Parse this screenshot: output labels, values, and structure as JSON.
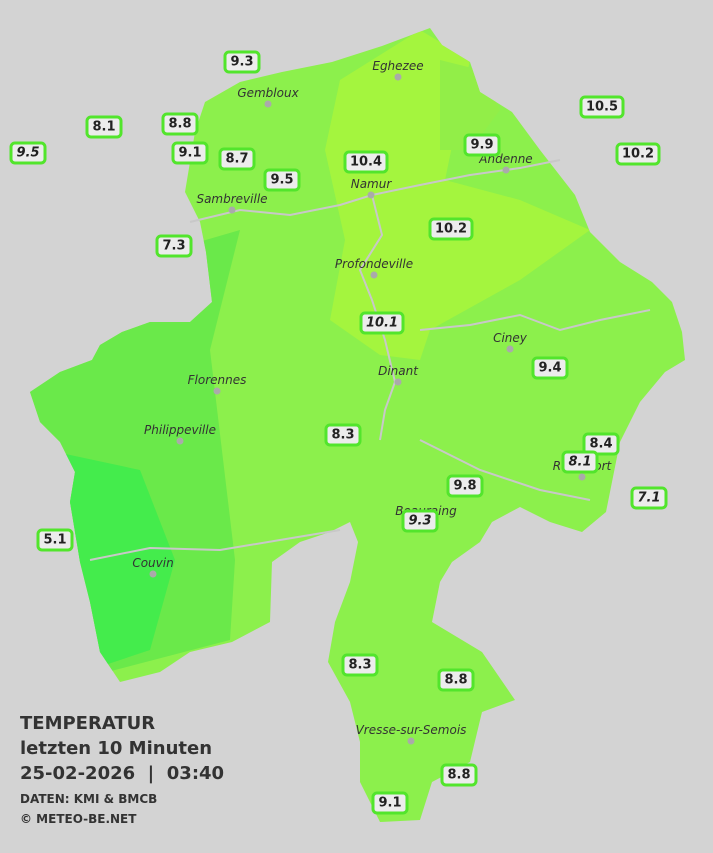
{
  "legend": {
    "title": "TEMPERATUR",
    "subtitle": "letzten 10 Minuten",
    "timestamp": "25-02-2026  |  03:40",
    "source": "DATEN: KMI & BMCB",
    "copyright": "© METEO-BE.NET"
  },
  "cities": [
    "Eghezee",
    "Gembloux",
    "Andenne",
    "Namur",
    "Sambreville",
    "Profondeville",
    "Ciney",
    "Dinant",
    "Florennes",
    "Philippeville",
    "Rochefort",
    "Beauraing",
    "Couvin",
    "Vresse-sur-Semois"
  ],
  "stations": [
    {
      "value": 9.3,
      "italic": false
    },
    {
      "value": 8.1,
      "italic": false
    },
    {
      "value": 9.5,
      "italic": true
    },
    {
      "value": 8.8,
      "italic": false
    },
    {
      "value": 9.1,
      "italic": false
    },
    {
      "value": 8.7,
      "italic": false
    },
    {
      "value": 9.5,
      "italic": false
    },
    {
      "value": 10.4,
      "italic": false
    },
    {
      "value": 9.9,
      "italic": false
    },
    {
      "value": 10.5,
      "italic": false
    },
    {
      "value": 10.2,
      "italic": false
    },
    {
      "value": 7.3,
      "italic": false
    },
    {
      "value": 10.2,
      "italic": false
    },
    {
      "value": 10.1,
      "italic": true
    },
    {
      "value": 9.4,
      "italic": false
    },
    {
      "value": 8.3,
      "italic": false
    },
    {
      "value": 8.4,
      "italic": false
    },
    {
      "value": 8.1,
      "italic": true
    },
    {
      "value": 7.1,
      "italic": true
    },
    {
      "value": 9.8,
      "italic": false
    },
    {
      "value": 9.3,
      "italic": true
    },
    {
      "value": 5.1,
      "italic": false
    },
    {
      "value": 8.3,
      "italic": false
    },
    {
      "value": 8.8,
      "italic": false
    },
    {
      "value": 8.8,
      "italic": false
    },
    {
      "value": 9.1,
      "italic": false
    }
  ]
}
